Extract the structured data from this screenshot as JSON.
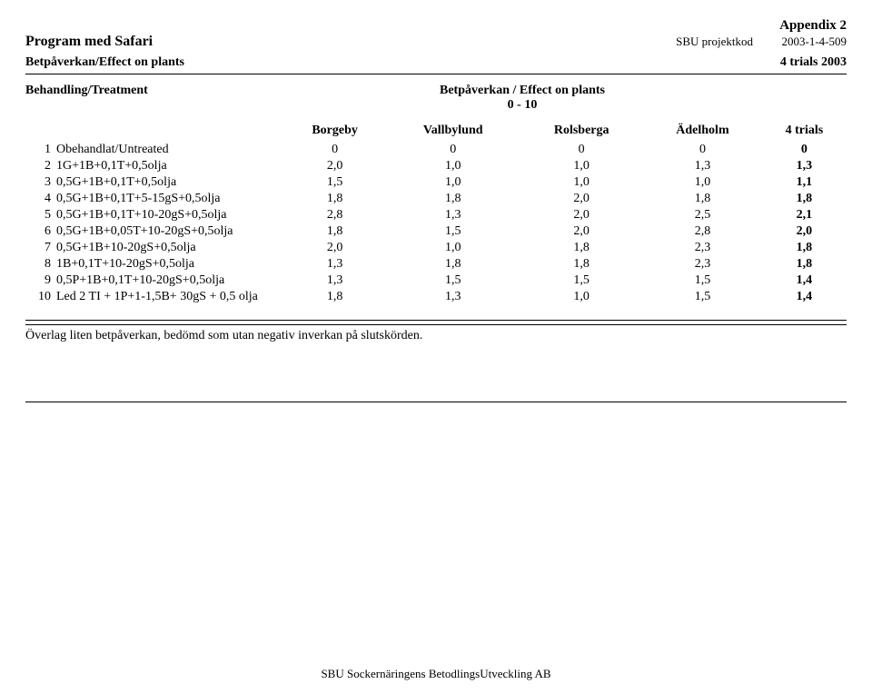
{
  "header": {
    "appendix": "Appendix 2",
    "program_title": "Program med Safari",
    "project_label": "SBU projektkod",
    "project_code": "2003-1-4-509",
    "sub_title": "Betpåverkan/Effect on plants",
    "trials_label": "4 trials 2003",
    "treatment_label": "Behandling/Treatment",
    "effect_label": "Betpåverkan / Effect on plants",
    "range_label": "0 - 10"
  },
  "columns": [
    "Borgeby",
    "Vallbylund",
    "Rolsberga",
    "Ädelholm",
    "4 trials"
  ],
  "rows": [
    {
      "n": "1",
      "name": "Obehandlat/Untreated",
      "v": [
        "0",
        "0",
        "0",
        "0",
        "0"
      ]
    },
    {
      "n": "2",
      "name": "1G+1B+0,1T+0,5olja",
      "v": [
        "2,0",
        "1,0",
        "1,0",
        "1,3",
        "1,3"
      ]
    },
    {
      "n": "3",
      "name": "0,5G+1B+0,1T+0,5olja",
      "v": [
        "1,5",
        "1,0",
        "1,0",
        "1,0",
        "1,1"
      ]
    },
    {
      "n": "4",
      "name": "0,5G+1B+0,1T+5-15gS+0,5olja",
      "v": [
        "1,8",
        "1,8",
        "2,0",
        "1,8",
        "1,8"
      ]
    },
    {
      "n": "5",
      "name": "0,5G+1B+0,1T+10-20gS+0,5olja",
      "v": [
        "2,8",
        "1,3",
        "2,0",
        "2,5",
        "2,1"
      ]
    },
    {
      "n": "6",
      "name": "0,5G+1B+0,05T+10-20gS+0,5olja",
      "v": [
        "1,8",
        "1,5",
        "2,0",
        "2,8",
        "2,0"
      ]
    },
    {
      "n": "7",
      "name": "0,5G+1B+10-20gS+0,5olja",
      "v": [
        "2,0",
        "1,0",
        "1,8",
        "2,3",
        "1,8"
      ]
    },
    {
      "n": "8",
      "name": "1B+0,1T+10-20gS+0,5olja",
      "v": [
        "1,3",
        "1,8",
        "1,8",
        "2,3",
        "1,8"
      ]
    },
    {
      "n": "9",
      "name": "0,5P+1B+0,1T+10-20gS+0,5olja",
      "v": [
        "1,3",
        "1,5",
        "1,5",
        "1,5",
        "1,4"
      ]
    },
    {
      "n": "10",
      "name": "Led 2 TI + 1P+1-1,5B+ 30gS + 0,5 olja",
      "v": [
        "1,8",
        "1,3",
        "1,0",
        "1,5",
        "1,4"
      ]
    }
  ],
  "note": "Överlag liten betpåverkan, bedömd som utan negativ inverkan på slutskörden.",
  "footer": "SBU Sockernäringens BetodlingsUtveckling AB"
}
